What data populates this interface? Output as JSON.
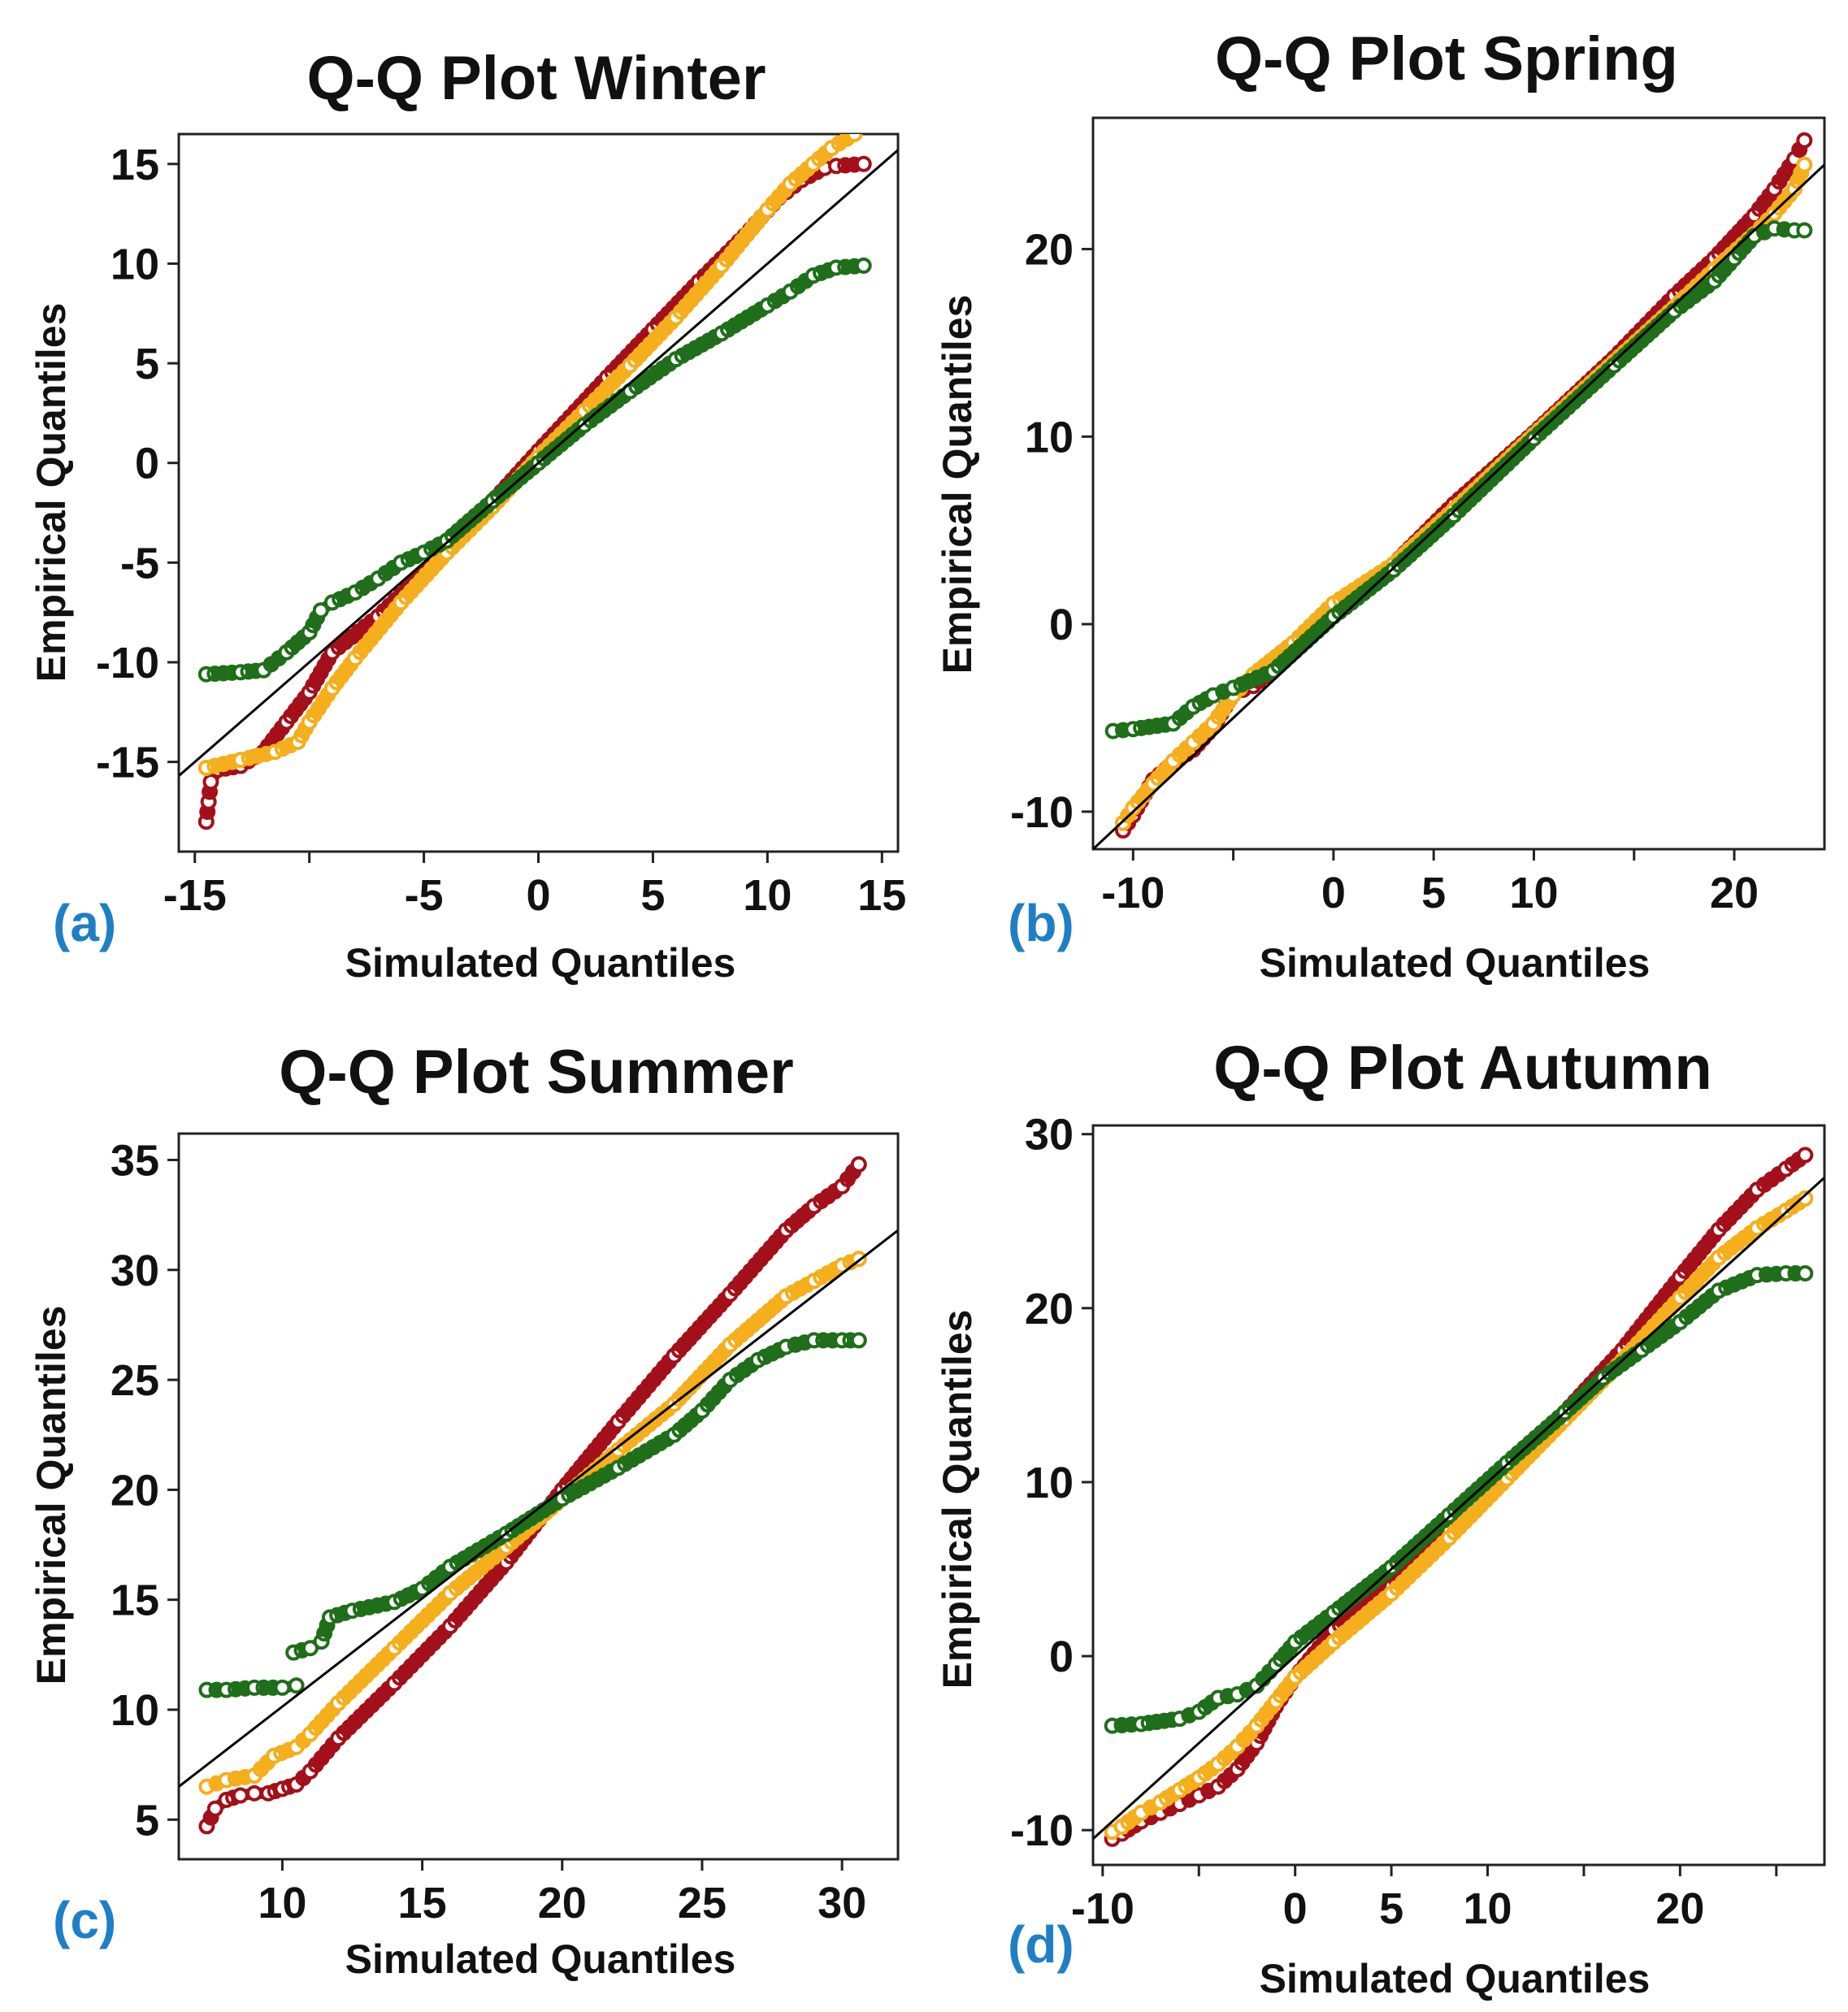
{
  "figure": {
    "description_panels": [
      "a",
      "b",
      "c",
      "d"
    ]
  },
  "colors": {
    "series_dark_red": "#a3101a",
    "series_orange": "#f5ae1c",
    "series_green": "#1f6e1a",
    "reference_line": "#000000",
    "panel_label": "#1f7fc6"
  },
  "chart_data": [
    {
      "panel_label": "(a)",
      "type": "scatter",
      "title": "Q-Q Plot Winter",
      "xlabel": "Simulated Quantiles",
      "ylabel": "Empirical Quantiles",
      "xlim": [
        -15.7,
        15.7
      ],
      "ylim": [
        -19.5,
        16.5
      ],
      "xticks": [
        -15,
        -10,
        -5,
        0,
        5,
        10,
        15
      ],
      "xtick_labels": [
        "-15",
        "",
        "-5",
        "0",
        "5",
        "10",
        "15"
      ],
      "yticks": [
        -15,
        -10,
        -5,
        0,
        5,
        10,
        15
      ],
      "ytick_labels": [
        "-15",
        "-10",
        "-5",
        "0",
        "5",
        "10",
        "15"
      ],
      "reference_line": {
        "x": [
          -15.7,
          15.7
        ],
        "y": [
          -15.7,
          15.7
        ]
      },
      "series": [
        {
          "name": "dark red",
          "color": "#a3101a",
          "x": [
            -14.5,
            -14.4,
            -14.3,
            -14,
            -13,
            -12,
            -11,
            -10,
            -9,
            -7,
            -5,
            -3,
            0,
            3,
            5,
            7,
            9,
            10.5,
            11.5,
            12.5,
            13,
            14.2
          ],
          "y": [
            -18,
            -17,
            -16,
            -15.4,
            -15.2,
            -14.5,
            -13,
            -11.5,
            -9.5,
            -7.7,
            -5.5,
            -3.2,
            0.6,
            4.3,
            6.7,
            9.1,
            11.4,
            13.3,
            14.2,
            14.8,
            14.9,
            15
          ]
        },
        {
          "name": "orange",
          "color": "#f5ae1c",
          "x": [
            -14.5,
            -13,
            -11.5,
            -10.5,
            -10,
            -9,
            -8,
            -6,
            -4,
            -2,
            0,
            2,
            4,
            6,
            8,
            10,
            11,
            12,
            12.8,
            13.8
          ],
          "y": [
            -15.3,
            -14.9,
            -14.5,
            -14,
            -13,
            -11.3,
            -9.8,
            -7,
            -4.5,
            -2.2,
            0.3,
            2.6,
            4.9,
            7.3,
            9.9,
            12.7,
            14,
            15,
            15.8,
            16.5
          ]
        },
        {
          "name": "green",
          "color": "#1f6e1a",
          "x": [
            -14.5,
            -13,
            -12,
            -11,
            -10,
            -9.5,
            -9,
            -8,
            -7,
            -6,
            -5,
            -4,
            -2,
            0,
            2,
            4,
            6,
            8,
            10,
            11,
            12,
            13,
            14.2
          ],
          "y": [
            -10.6,
            -10.5,
            -10.4,
            -9.5,
            -8.5,
            -7.4,
            -7,
            -6.5,
            -5.8,
            -5,
            -4.5,
            -3.9,
            -1.9,
            0,
            1.9,
            3.6,
            5.2,
            6.5,
            7.9,
            8.6,
            9.4,
            9.8,
            9.9
          ]
        }
      ]
    },
    {
      "panel_label": "(b)",
      "type": "scatter",
      "title": "Q-Q Plot Spring",
      "xlabel": "Simulated Quantiles",
      "ylabel": "Empirical Quantiles",
      "xlim": [
        -12,
        24.5
      ],
      "ylim": [
        -12,
        27
      ],
      "xticks": [
        -10,
        -5,
        0,
        5,
        10,
        15,
        20
      ],
      "xtick_labels": [
        "-10",
        "",
        "0",
        "5",
        "10",
        "",
        "20"
      ],
      "yticks": [
        -10,
        0,
        10,
        20
      ],
      "ytick_labels": [
        "-10",
        "0",
        "10",
        "20"
      ],
      "reference_line": {
        "x": [
          -12,
          24.5
        ],
        "y": [
          -12,
          24.5
        ]
      },
      "series": [
        {
          "name": "dark red",
          "color": "#a3101a",
          "x": [
            -10.5,
            -10,
            -9,
            -8,
            -7,
            -6,
            -5,
            -4,
            -2,
            0,
            3,
            6,
            10,
            14,
            17,
            19,
            21,
            22,
            23,
            23.5
          ],
          "y": [
            -11,
            -10.2,
            -8.3,
            -7.4,
            -6.7,
            -5.5,
            -3.7,
            -3.3,
            -1.5,
            0.7,
            3.2,
            6.4,
            10.2,
            14.2,
            17.5,
            19.5,
            21.8,
            23.2,
            24.8,
            25.8
          ]
        },
        {
          "name": "orange",
          "color": "#f5ae1c",
          "x": [
            -10.5,
            -10,
            -9,
            -8,
            -7,
            -6,
            -5,
            -4,
            -2,
            0,
            3,
            6,
            10,
            14,
            17,
            19,
            21,
            22,
            23,
            23.5
          ],
          "y": [
            -10.6,
            -9.8,
            -8.5,
            -7.3,
            -6.3,
            -5.3,
            -3.8,
            -2.7,
            -1,
            1.1,
            3.2,
            6.1,
            10.1,
            14,
            16.9,
            18.9,
            20.8,
            21.9,
            23.2,
            24.5
          ]
        },
        {
          "name": "green",
          "color": "#1f6e1a",
          "x": [
            -11,
            -10,
            -8,
            -7,
            -6,
            -5,
            -3,
            0,
            3,
            6,
            10,
            14,
            17,
            19,
            20,
            21,
            22,
            23,
            23.5
          ],
          "y": [
            -5.7,
            -5.6,
            -5.3,
            -4.4,
            -3.8,
            -3.4,
            -2.5,
            0.4,
            2.9,
            5.8,
            9.9,
            13.8,
            16.7,
            18.3,
            19.5,
            20.7,
            21.1,
            21,
            21
          ]
        }
      ]
    },
    {
      "panel_label": "(c)",
      "type": "scatter",
      "title": "Q-Q Plot Summer",
      "xlabel": "Simulated Quantiles",
      "ylabel": "Empirical Quantiles",
      "xlim": [
        6.3,
        32
      ],
      "ylim": [
        3.2,
        36.2
      ],
      "xticks": [
        10,
        15,
        20,
        25,
        30
      ],
      "xtick_labels": [
        "10",
        "15",
        "20",
        "25",
        "30"
      ],
      "yticks": [
        5,
        10,
        15,
        20,
        25,
        30,
        35
      ],
      "ytick_labels": [
        "5",
        "10",
        "15",
        "20",
        "25",
        "30",
        "35"
      ],
      "reference_line": {
        "x": [
          6.3,
          32
        ],
        "y": [
          6.5,
          31.8
        ]
      },
      "series": [
        {
          "name": "dark red",
          "color": "#a3101a",
          "x": [
            7.3,
            7.6,
            8,
            8.5,
            9,
            9.5,
            10,
            10.5,
            11,
            12,
            14,
            16,
            18,
            20,
            22,
            24,
            26,
            28,
            29,
            30,
            30.6
          ],
          "y": [
            4.7,
            5.5,
            5.9,
            6.1,
            6.2,
            6.2,
            6.4,
            6.6,
            7.2,
            8.7,
            11.2,
            13.8,
            16.7,
            20,
            23.1,
            26.1,
            28.9,
            31.8,
            32.9,
            33.8,
            34.8
          ]
        },
        {
          "name": "orange",
          "color": "#f5ae1c",
          "x": [
            7.3,
            8,
            9,
            9.7,
            10.5,
            11,
            12,
            14,
            16,
            18,
            20,
            22,
            24,
            26,
            28,
            29,
            30,
            30.6
          ],
          "y": [
            6.5,
            6.8,
            7,
            7.9,
            8.3,
            8.9,
            10.3,
            12.8,
            15.3,
            17.4,
            19.6,
            21.8,
            23.9,
            26.6,
            28.8,
            29.5,
            30.2,
            30.5
          ]
        },
        {
          "name": "green",
          "color": "#1f6e1a",
          "x": [
            7.3,
            8,
            9,
            10,
            10.5
          ],
          "y": [
            10.9,
            10.9,
            11,
            11,
            11.1
          ]
        },
        {
          "name": "green",
          "color": "#1f6e1a",
          "x": [
            10.4,
            11,
            11.4,
            11.7,
            12.5,
            14,
            15,
            16,
            18,
            20,
            22,
            24,
            25,
            26,
            27,
            28,
            29,
            30,
            30.6
          ],
          "y": [
            12.6,
            12.8,
            13.1,
            14.2,
            14.5,
            14.9,
            15.5,
            16.5,
            18,
            19.6,
            21,
            22.5,
            23.6,
            25,
            25.9,
            26.5,
            26.8,
            26.8,
            26.8
          ]
        }
      ]
    },
    {
      "panel_label": "(d)",
      "type": "scatter",
      "title": "Q-Q Plot Autumn",
      "xlabel": "Simulated Quantiles",
      "ylabel": "Empirical Quantiles",
      "xlim": [
        -10.5,
        27.5
      ],
      "ylim": [
        -12,
        30.5
      ],
      "xticks": [
        -10,
        -5,
        0,
        5,
        10,
        15,
        20,
        25
      ],
      "xtick_labels": [
        "-10",
        "",
        "0",
        "5",
        "10",
        "",
        "20",
        ""
      ],
      "yticks": [
        -10,
        0,
        10,
        20,
        30
      ],
      "ytick_labels": [
        "-10",
        "0",
        "10",
        "20",
        "30"
      ],
      "reference_line": {
        "x": [
          -10.5,
          27.5
        ],
        "y": [
          -10.5,
          27.5
        ]
      },
      "series": [
        {
          "name": "dark red",
          "color": "#a3101a",
          "x": [
            -9.5,
            -9,
            -8,
            -7,
            -6,
            -5,
            -4,
            -3,
            -2,
            -1,
            0,
            2,
            5,
            8,
            11,
            14,
            17,
            20,
            22,
            24,
            25.5,
            26.5
          ],
          "y": [
            -10.5,
            -10.2,
            -9.5,
            -9,
            -8.5,
            -8,
            -7.5,
            -6.5,
            -5,
            -2.9,
            -1.2,
            1.5,
            4,
            7.3,
            10.6,
            14,
            17.6,
            21.8,
            24.5,
            26.8,
            28,
            28.8
          ]
        },
        {
          "name": "orange",
          "color": "#f5ae1c",
          "x": [
            -9.5,
            -9,
            -8,
            -7,
            -6,
            -5,
            -4,
            -3,
            -2,
            -1,
            0,
            2,
            5,
            8,
            11,
            14,
            17,
            20,
            22,
            24,
            25.5,
            26.5
          ],
          "y": [
            -10.1,
            -9.8,
            -9,
            -8.4,
            -7.7,
            -7,
            -6.2,
            -5.2,
            -4,
            -2.6,
            -1.2,
            0.8,
            3.6,
            6.8,
            10.2,
            13.6,
            17,
            20.6,
            22.9,
            24.6,
            25.6,
            26.3
          ]
        },
        {
          "name": "green",
          "color": "#1f6e1a",
          "x": [
            -9.5,
            -8,
            -6,
            -5,
            -4,
            -3,
            -2,
            -1,
            0,
            2,
            5,
            8,
            11,
            14,
            16,
            18,
            20,
            22,
            24,
            25.5,
            26.5
          ],
          "y": [
            -4,
            -3.9,
            -3.6,
            -3.2,
            -2.4,
            -2.2,
            -1.7,
            -0.5,
            0.8,
            2.5,
            5.1,
            8.1,
            11.1,
            14,
            16,
            17.6,
            19.2,
            21,
            21.9,
            22,
            22
          ]
        }
      ]
    }
  ]
}
